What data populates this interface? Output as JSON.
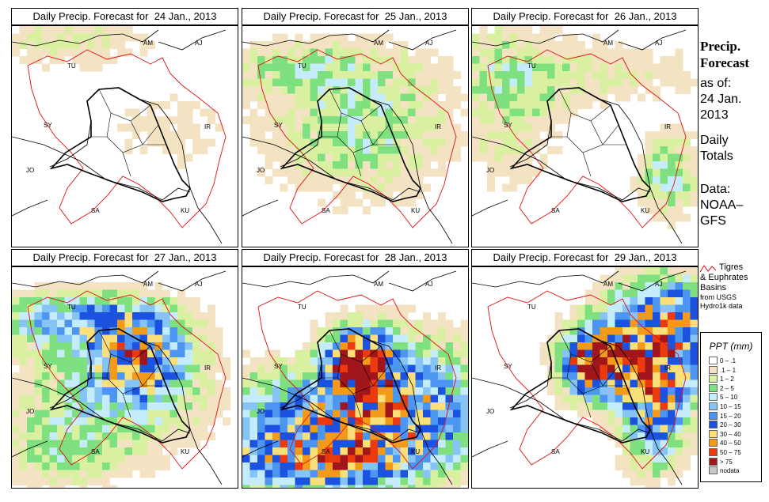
{
  "title_prefix": "Daily Precip. Forecast for",
  "side_panel": {
    "title_line1": "Precip.",
    "title_line2": "Forecast",
    "asof_line1": "as of:",
    "asof_line2": "24 Jan.",
    "asof_line3": "2013",
    "totals_line1": "Daily",
    "totals_line2": "Totals",
    "source_line1": "Data:",
    "source_line2": "NOAA–",
    "source_line3": "GFS"
  },
  "basin_note": {
    "line1": "Tigres",
    "line2": "& Euphrates",
    "line3": "Basins",
    "line4": "from USGS",
    "line5": "Hydro1k data"
  },
  "legend": {
    "title": "PPT (mm)",
    "items": [
      {
        "label": "0 – .1",
        "color": "#ffffff"
      },
      {
        "label": ".1 – 1",
        "color": "#f3e3c3"
      },
      {
        "label": "1 – 2",
        "color": "#d8f0a0"
      },
      {
        "label": "2 – 5",
        "color": "#7ee07e"
      },
      {
        "label": "5 – 10",
        "color": "#c4ecfa"
      },
      {
        "label": "10 – 15",
        "color": "#86c4f6"
      },
      {
        "label": "15 – 20",
        "color": "#4c96f2"
      },
      {
        "label": "20 – 30",
        "color": "#1c52e0"
      },
      {
        "label": "30 – 40",
        "color": "#fbe07a"
      },
      {
        "label": "40 – 50",
        "color": "#f39a1a"
      },
      {
        "label": "50 – 75",
        "color": "#ea3a0e"
      },
      {
        "label": "> 75",
        "color": "#a0161a"
      },
      {
        "label": "nodata",
        "color": "#c8c8c8"
      }
    ]
  },
  "country_labels": {
    "am": "AM",
    "aj": "AJ",
    "tu": "TU",
    "sy": "SY",
    "ir": "IR",
    "jo": "JO",
    "sa": "SA",
    "ku": "KU"
  },
  "panels": [
    {
      "date": "24 Jan., 2013",
      "intensity": 0
    },
    {
      "date": "25 Jan., 2013",
      "intensity": 1
    },
    {
      "date": "26 Jan., 2013",
      "intensity": 2
    },
    {
      "date": "27 Jan., 2013",
      "intensity": 3
    },
    {
      "date": "28 Jan., 2013",
      "intensity": 4
    },
    {
      "date": "29 Jan., 2013",
      "intensity": 5
    }
  ]
}
